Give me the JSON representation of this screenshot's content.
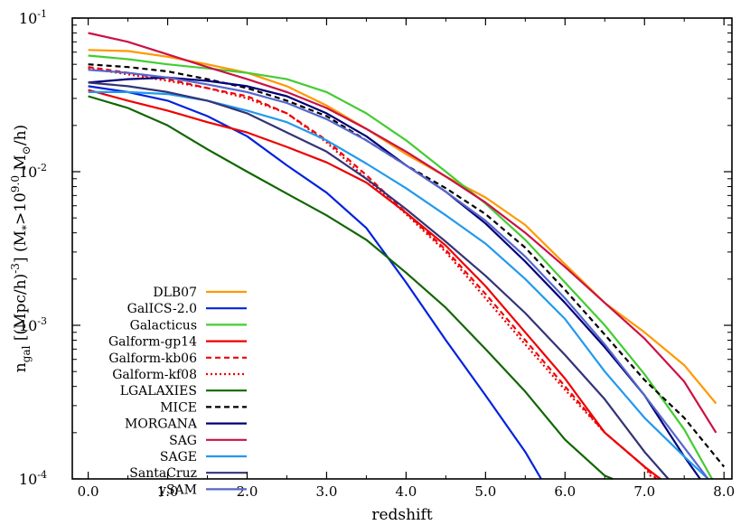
{
  "chart_data": {
    "type": "line",
    "xlabel": "redshift",
    "ylabel": {
      "n": "n",
      "n_sub": "gal",
      "unit_open": " [(Mpc/h)",
      "unit_exp": "-3",
      "unit_close": "] (M",
      "m_sub": "*",
      "gt": ">10",
      "exp": "9.0",
      "sun_m": " M",
      "sun_sub": "⊙",
      "tail": "/h)"
    },
    "xlim": [
      -0.2,
      8.1
    ],
    "ylim": [
      0.0001,
      0.1
    ],
    "yscale": "log",
    "x_ticks": [
      "0.0",
      "1.0",
      "2.0",
      "3.0",
      "4.0",
      "5.0",
      "6.0",
      "7.0",
      "8.0"
    ],
    "y_ticks": [
      {
        "base": "10",
        "exp": "-4"
      },
      {
        "base": "10",
        "exp": "-3"
      },
      {
        "base": "10",
        "exp": "-2"
      },
      {
        "base": "10",
        "exp": "-1"
      }
    ],
    "legend_position": "bottom-left",
    "series": [
      {
        "name": "DLB07",
        "color": "#ff9900",
        "dash": "solid",
        "x": [
          0,
          0.5,
          1,
          1.5,
          2,
          2.5,
          3,
          3.5,
          4,
          4.5,
          5,
          5.5,
          6,
          6.5,
          7,
          7.5,
          7.9
        ],
        "y": [
          0.062,
          0.061,
          0.056,
          0.05,
          0.044,
          0.036,
          0.027,
          0.019,
          0.013,
          0.0093,
          0.0068,
          0.0045,
          0.0025,
          0.0014,
          0.0009,
          0.00055,
          0.00031
        ]
      },
      {
        "name": "GalICS-2.0",
        "color": "#0022dd",
        "dash": "solid",
        "x": [
          0,
          0.5,
          1,
          1.5,
          2,
          2.5,
          3,
          3.5,
          4,
          4.5,
          5,
          5.5,
          5.7
        ],
        "y": [
          0.036,
          0.033,
          0.029,
          0.023,
          0.017,
          0.011,
          0.0073,
          0.0043,
          0.0019,
          0.0008,
          0.00035,
          0.00015,
          0.0001
        ]
      },
      {
        "name": "Galacticus",
        "color": "#44cc33",
        "dash": "solid",
        "x": [
          0,
          0.5,
          1,
          1.5,
          2,
          2.5,
          3,
          3.5,
          4,
          4.5,
          5,
          5.5,
          6,
          6.5,
          7,
          7.5,
          7.85
        ],
        "y": [
          0.057,
          0.054,
          0.05,
          0.047,
          0.044,
          0.04,
          0.033,
          0.024,
          0.016,
          0.01,
          0.0062,
          0.0036,
          0.0019,
          0.001,
          0.00048,
          0.00021,
          0.0001
        ]
      },
      {
        "name": "Galform-gp14",
        "color": "#ee0000",
        "dash": "solid",
        "x": [
          0,
          0.5,
          1,
          1.5,
          2,
          2.5,
          3,
          3.5,
          4,
          4.5,
          5,
          5.5,
          6,
          6.5,
          7,
          7.2
        ],
        "y": [
          0.034,
          0.029,
          0.025,
          0.021,
          0.018,
          0.0145,
          0.0115,
          0.0085,
          0.0054,
          0.0033,
          0.0018,
          0.0009,
          0.00045,
          0.0002,
          0.00012,
          0.0001
        ]
      },
      {
        "name": "Galform-kb06",
        "color": "#ee0000",
        "dash": "dashed",
        "x": [
          0,
          0.5,
          1,
          1.5,
          2,
          2.5,
          3,
          3.5,
          4,
          4.5,
          5,
          5.5,
          6,
          6.5,
          7,
          7.15
        ],
        "y": [
          0.048,
          0.044,
          0.04,
          0.035,
          0.031,
          0.024,
          0.016,
          0.0095,
          0.0054,
          0.0031,
          0.0016,
          0.0008,
          0.0004,
          0.0002,
          0.00012,
          0.0001
        ]
      },
      {
        "name": "Galform-kf08",
        "color": "#ee0000",
        "dash": "dotted",
        "x": [
          0,
          0.5,
          1,
          1.5,
          2,
          2.5,
          3,
          3.5,
          4,
          4.5,
          5,
          5.5,
          6,
          6.5,
          7,
          7.1
        ],
        "y": [
          0.047,
          0.043,
          0.039,
          0.035,
          0.03,
          0.024,
          0.0155,
          0.009,
          0.0053,
          0.003,
          0.0015,
          0.00075,
          0.00038,
          0.0002,
          0.00012,
          0.0001
        ]
      },
      {
        "name": "LGALAXIES",
        "color": "#116600",
        "dash": "solid",
        "x": [
          0,
          0.5,
          1,
          1.5,
          2,
          2.5,
          3,
          3.5,
          4,
          4.5,
          5,
          5.5,
          6,
          6.5,
          6.6
        ],
        "y": [
          0.031,
          0.026,
          0.02,
          0.014,
          0.01,
          0.0072,
          0.0052,
          0.0036,
          0.0022,
          0.0013,
          0.0007,
          0.00037,
          0.00018,
          0.000105,
          0.0001
        ]
      },
      {
        "name": "MICE",
        "color": "#000000",
        "dash": "dashed",
        "x": [
          0,
          0.5,
          1,
          1.5,
          2,
          2.5,
          3,
          3.5,
          4,
          4.5,
          5,
          5.5,
          6,
          6.5,
          7,
          7.5,
          8
        ],
        "y": [
          0.05,
          0.048,
          0.045,
          0.04,
          0.035,
          0.029,
          0.023,
          0.016,
          0.011,
          0.0078,
          0.0053,
          0.0032,
          0.0017,
          0.00087,
          0.00044,
          0.00025,
          0.00012
        ]
      },
      {
        "name": "MORGANA",
        "color": "#000077",
        "dash": "solid",
        "x": [
          0,
          0.5,
          1,
          1.5,
          2,
          2.5,
          3,
          3.5,
          4,
          4.5,
          5,
          5.5,
          6,
          6.5,
          7,
          7.5,
          7.7
        ],
        "y": [
          0.038,
          0.04,
          0.041,
          0.039,
          0.036,
          0.031,
          0.024,
          0.017,
          0.011,
          0.0074,
          0.0046,
          0.0026,
          0.0014,
          0.00072,
          0.00035,
          0.00014,
          0.0001
        ]
      },
      {
        "name": "SAG",
        "color": "#cc1144",
        "dash": "solid",
        "x": [
          0,
          0.5,
          1,
          1.5,
          2,
          2.5,
          3,
          3.5,
          4,
          4.5,
          5,
          5.5,
          6,
          6.5,
          7,
          7.5,
          7.9
        ],
        "y": [
          0.08,
          0.07,
          0.058,
          0.048,
          0.04,
          0.033,
          0.026,
          0.019,
          0.0135,
          0.0093,
          0.0063,
          0.004,
          0.0024,
          0.0014,
          0.00082,
          0.00043,
          0.0002
        ]
      },
      {
        "name": "SAGE",
        "color": "#2299ee",
        "dash": "solid",
        "x": [
          0,
          0.5,
          1,
          1.5,
          2,
          2.5,
          3,
          3.5,
          4,
          4.5,
          5,
          5.5,
          6,
          6.5,
          7,
          7.5,
          7.8
        ],
        "y": [
          0.033,
          0.033,
          0.032,
          0.029,
          0.025,
          0.021,
          0.016,
          0.0113,
          0.0078,
          0.0052,
          0.0034,
          0.002,
          0.0011,
          0.0005,
          0.00025,
          0.00014,
          0.0001
        ]
      },
      {
        "name": "SantaCruz",
        "color": "#333377",
        "dash": "solid",
        "x": [
          0,
          0.5,
          1,
          1.5,
          2,
          2.5,
          3,
          3.5,
          4,
          4.5,
          5,
          5.5,
          6,
          6.5,
          7,
          7.3
        ],
        "y": [
          0.038,
          0.036,
          0.033,
          0.029,
          0.024,
          0.018,
          0.0135,
          0.009,
          0.0057,
          0.0035,
          0.0021,
          0.0012,
          0.00064,
          0.00033,
          0.00015,
          0.0001
        ]
      },
      {
        "name": "ySAM",
        "color": "#5566cc",
        "dash": "solid",
        "x": [
          0,
          0.5,
          1,
          1.5,
          2,
          2.5,
          3,
          3.5,
          4,
          4.5,
          5,
          5.5,
          6,
          6.5,
          7,
          7.5,
          7.8
        ],
        "y": [
          0.046,
          0.044,
          0.041,
          0.037,
          0.033,
          0.028,
          0.022,
          0.016,
          0.011,
          0.0074,
          0.0048,
          0.0028,
          0.0015,
          0.00075,
          0.00035,
          0.00016,
          0.0001
        ]
      }
    ]
  }
}
